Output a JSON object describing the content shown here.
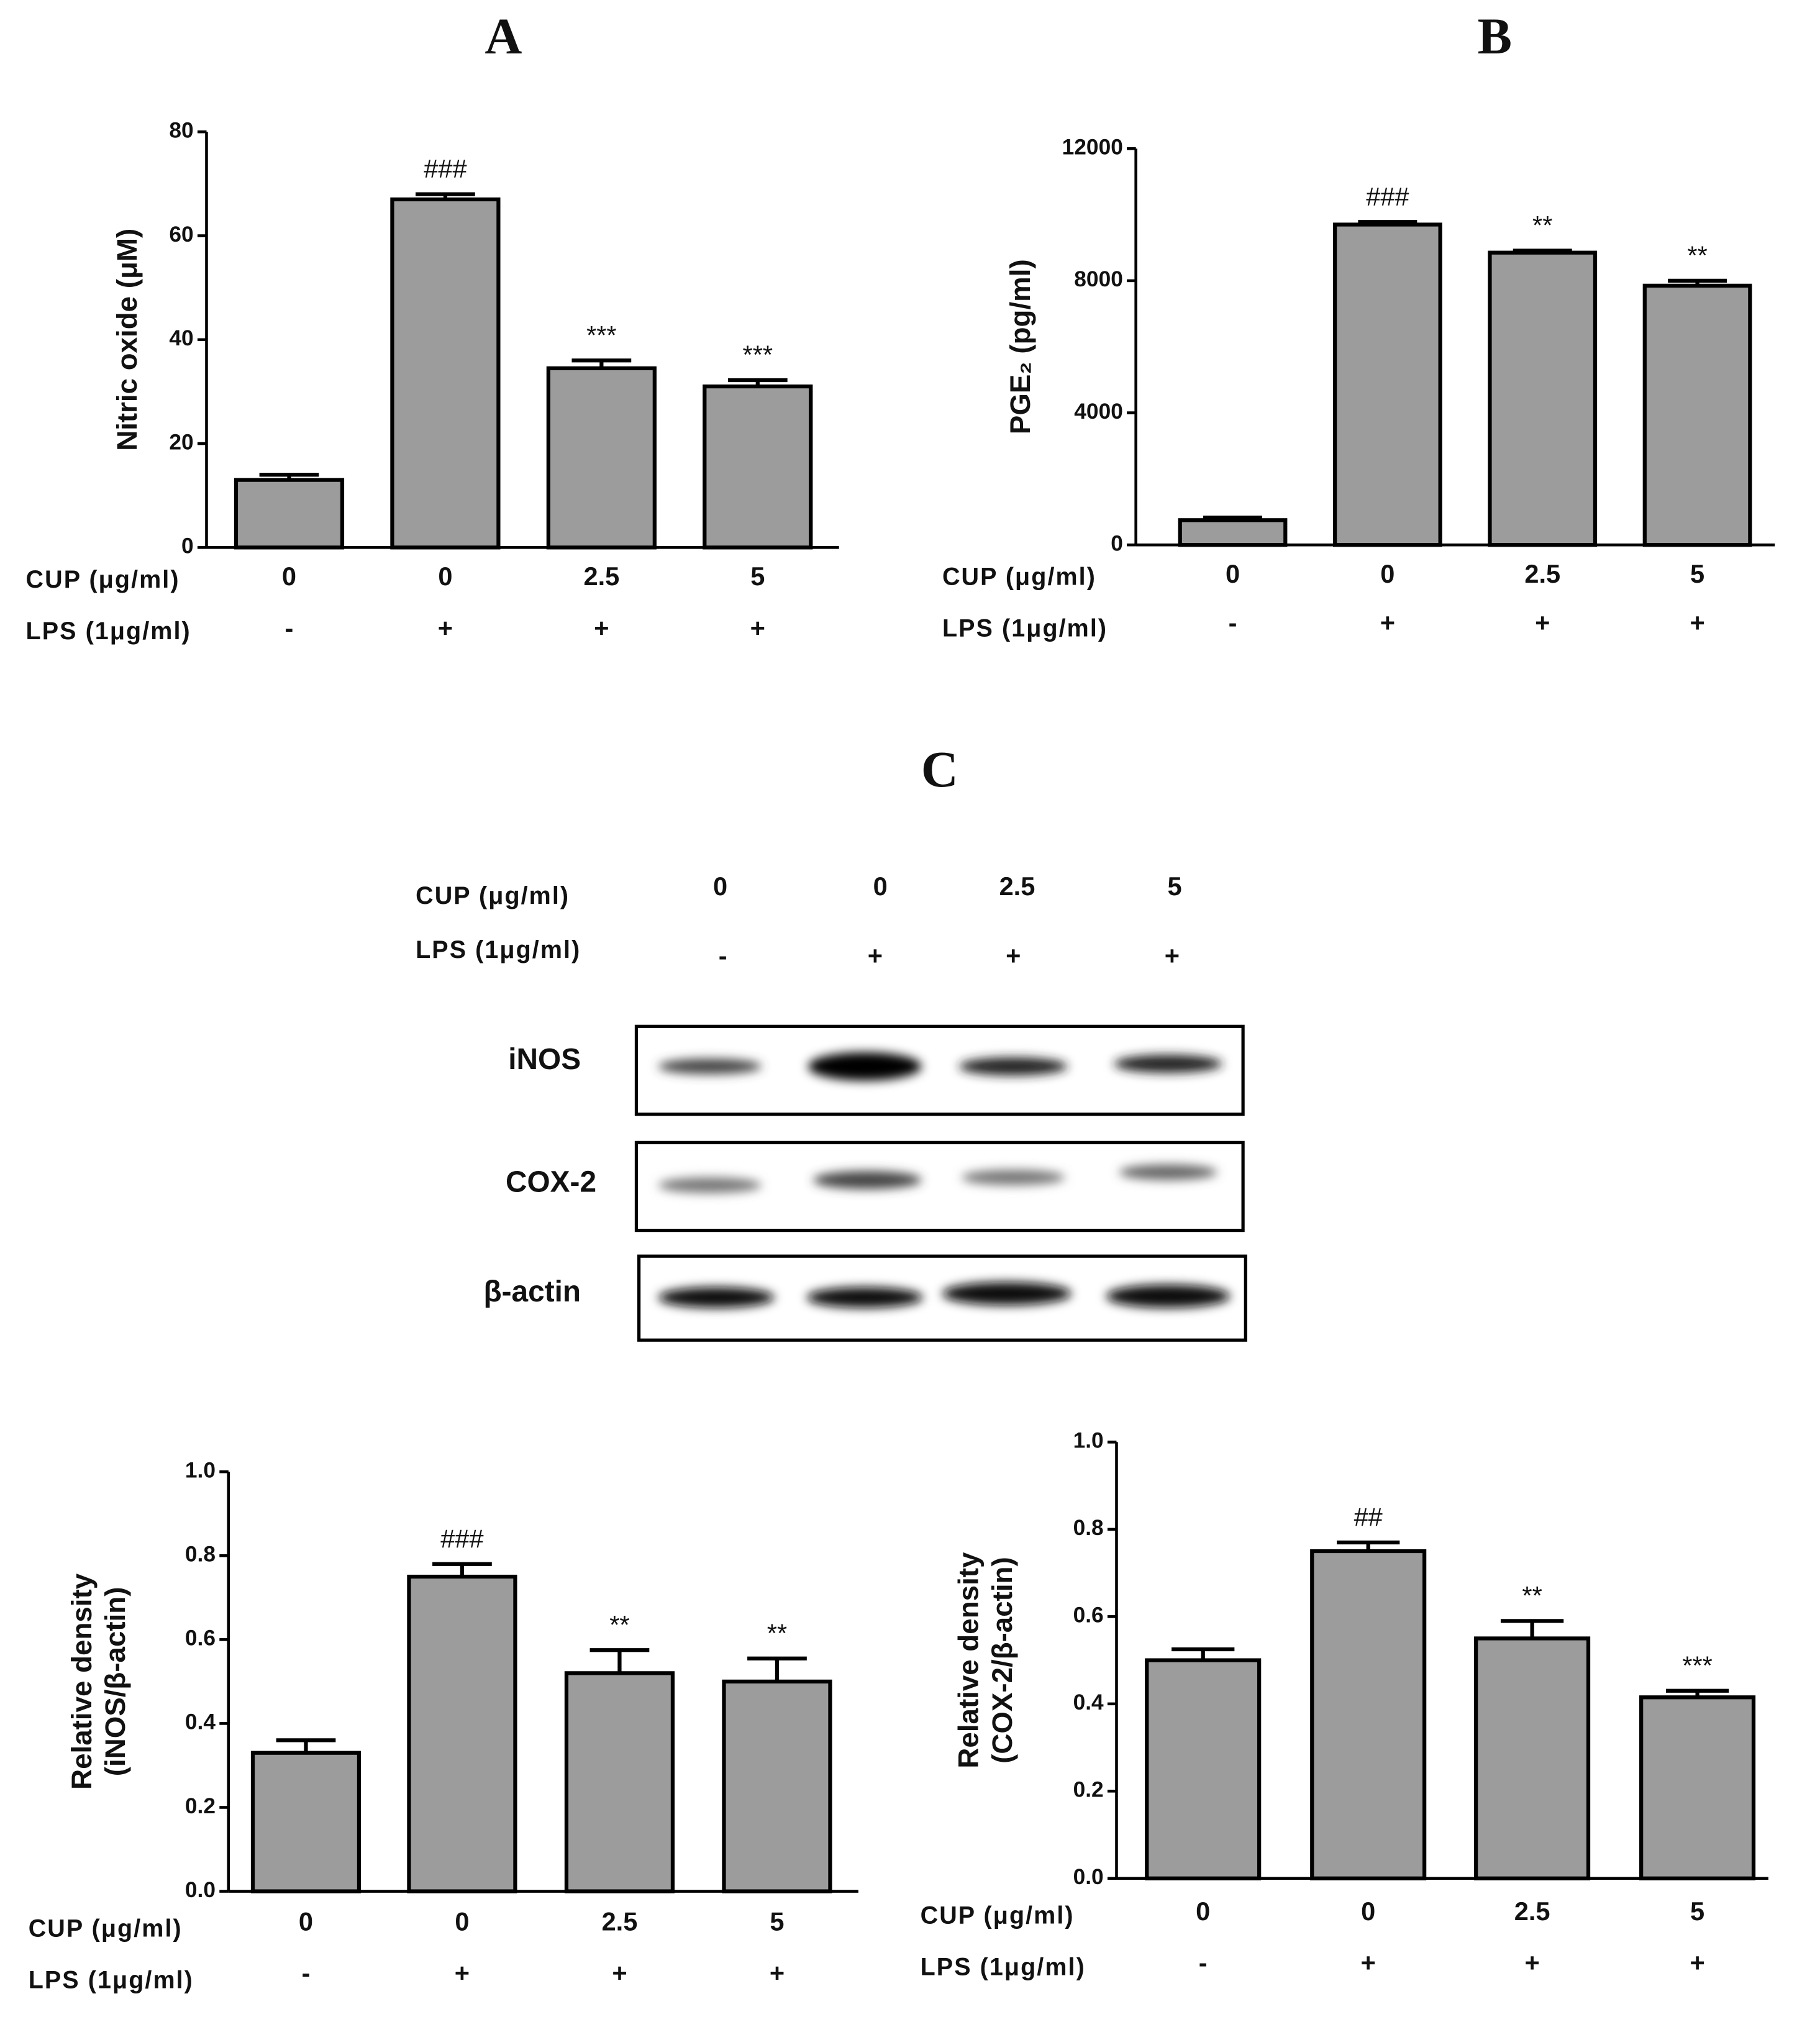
{
  "chart_data": [
    {
      "type": "bar",
      "title": "A",
      "ylabel": [
        "Nitric oxide (μM)"
      ],
      "row_labels": [
        "CUP (μg/ml)",
        "LPS (1μg/ml)"
      ],
      "categories": [
        "0",
        "0",
        "2.5",
        "5"
      ],
      "categories_lps": [
        "-",
        "+",
        "+",
        "+"
      ],
      "values": [
        13,
        67,
        34.5,
        31
      ],
      "errors": [
        1,
        1,
        1.5,
        1.2
      ],
      "annotations": [
        null,
        "###",
        "***",
        "***"
      ],
      "color": "#9c9c9c",
      "ylim": [
        0,
        80
      ],
      "yticks": [
        0,
        20,
        40,
        60,
        80
      ]
    },
    {
      "type": "bar",
      "title": "B",
      "ylabel": [
        "PGE₂ (pg/ml)"
      ],
      "row_labels": [
        "CUP (μg/ml)",
        "LPS (1μg/ml)"
      ],
      "categories": [
        "0",
        "0",
        "2.5",
        "5"
      ],
      "categories_lps": [
        "-",
        "+",
        "+",
        "+"
      ],
      "values": [
        750,
        9700,
        8850,
        7850
      ],
      "errors": [
        80,
        80,
        60,
        150
      ],
      "annotations": [
        null,
        "###",
        "**",
        "**"
      ],
      "color": "#9c9c9c",
      "ylim": [
        0,
        12000
      ],
      "yticks": [
        0,
        4000,
        8000,
        12000
      ]
    },
    {
      "type": "bar",
      "ylabel": [
        "Relative density",
        "(iNOS/β-actin)"
      ],
      "row_labels": [
        "CUP (μg/ml)",
        "LPS (1μg/ml)"
      ],
      "categories": [
        "0",
        "0",
        "2.5",
        "5"
      ],
      "categories_lps": [
        "-",
        "+",
        "+",
        "+"
      ],
      "values": [
        0.33,
        0.75,
        0.52,
        0.5
      ],
      "errors": [
        0.03,
        0.03,
        0.055,
        0.055
      ],
      "annotations": [
        null,
        "###",
        "**",
        "**"
      ],
      "color": "#9c9c9c",
      "ylim": [
        0,
        1
      ],
      "yticks": [
        {
          "value": 0,
          "label": "0.0"
        },
        0.2,
        0.4,
        0.6,
        0.8,
        {
          "value": 1,
          "label": "1.0"
        }
      ]
    },
    {
      "type": "bar",
      "ylabel": [
        "Relative density",
        "(COX-2/β-actin)"
      ],
      "row_labels": [
        "CUP (μg/ml)",
        "LPS (1μg/ml)"
      ],
      "categories": [
        "0",
        "0",
        "2.5",
        "5"
      ],
      "categories_lps": [
        "-",
        "+",
        "+",
        "+"
      ],
      "values": [
        0.5,
        0.75,
        0.55,
        0.415
      ],
      "errors": [
        0.025,
        0.02,
        0.04,
        0.015
      ],
      "annotations": [
        null,
        "##",
        "**",
        "***"
      ],
      "color": "#9c9c9c",
      "ylim": [
        0,
        1
      ],
      "yticks": [
        {
          "value": 0,
          "label": "0.0"
        },
        0.2,
        0.4,
        0.6,
        0.8,
        {
          "value": 1,
          "label": "1.0"
        }
      ]
    }
  ],
  "blot": {
    "title": "C",
    "row_labels": [
      "CUP (μg/ml)",
      "LPS (1μg/ml)"
    ],
    "categories": [
      "0",
      "0",
      "2.5",
      "5"
    ],
    "categories_lps": [
      "-",
      "+",
      "+",
      "+"
    ],
    "proteins": [
      "iNOS",
      "COX-2",
      "β-actin"
    ]
  }
}
